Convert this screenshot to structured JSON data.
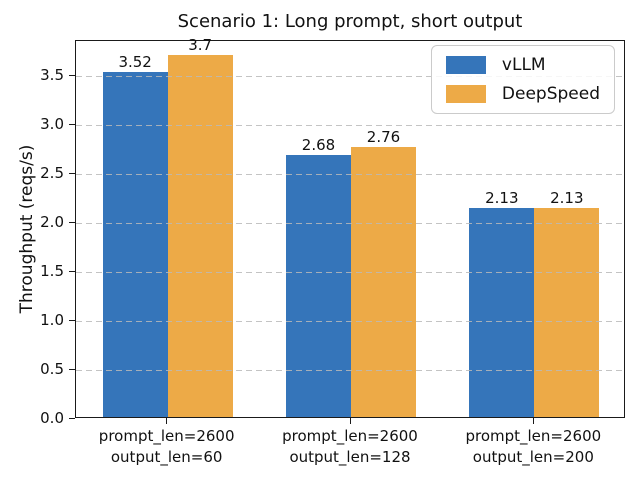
{
  "figure": {
    "background": "#ffffff"
  },
  "chart_data": {
    "type": "bar",
    "title": "Scenario 1: Long prompt, short output",
    "ylabel": "Throughput (reqs/s)",
    "xlabel": "",
    "categories": [
      [
        "prompt_len=2600",
        "output_len=60"
      ],
      [
        "prompt_len=2600",
        "output_len=128"
      ],
      [
        "prompt_len=2600",
        "output_len=200"
      ]
    ],
    "series": [
      {
        "name": "vLLM",
        "color": "#3575BA",
        "values": [
          3.52,
          2.68,
          2.13
        ]
      },
      {
        "name": "DeepSpeed",
        "color": "#EDAA47",
        "values": [
          3.7,
          2.76,
          2.13
        ]
      }
    ],
    "bar_value_labels": [
      "3.52",
      "3.7",
      "2.68",
      "2.76",
      "2.13",
      "2.13"
    ],
    "ylim": [
      0,
      3.86
    ],
    "yticks": [
      "0.0",
      "0.5",
      "1.0",
      "1.5",
      "2.0",
      "2.5",
      "3.0",
      "3.5"
    ],
    "grid": true,
    "grid_style": "dashed",
    "legend_position": "upper right"
  }
}
